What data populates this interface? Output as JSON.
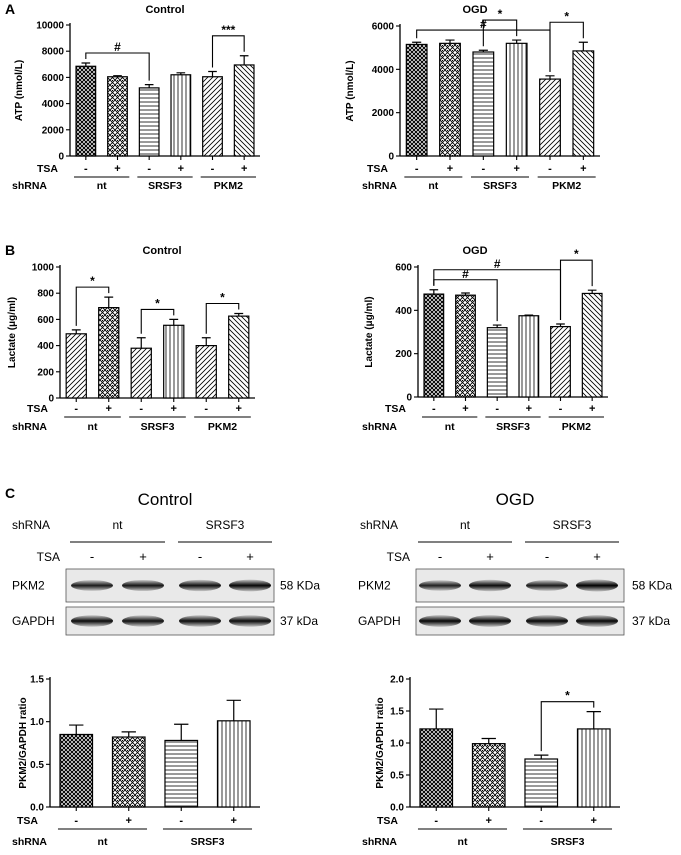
{
  "panel_letters": [
    "A",
    "B",
    "C"
  ],
  "chart_data": [
    {
      "id": "atp-control",
      "type": "bar",
      "title": "Control",
      "ylabel": "ATP (nmol/L)",
      "ylim": [
        0,
        10000
      ],
      "yticks": [
        0,
        2000,
        4000,
        6000,
        8000,
        10000
      ],
      "tsa": [
        "-",
        "+",
        "-",
        "+",
        "-",
        "+"
      ],
      "groups": [
        "nt",
        "SRSF3",
        "PKM2"
      ],
      "pattern_cycle": [
        "cross",
        "check",
        "hlines",
        "vlines",
        "diag",
        "diagb"
      ],
      "values": [
        6850,
        6050,
        5200,
        6200,
        6050,
        6950
      ],
      "errors": [
        250,
        80,
        250,
        150,
        400,
        700
      ],
      "significance": [
        {
          "from": 0,
          "to": 2,
          "label": "#"
        },
        {
          "from": 4,
          "to": 5,
          "label": "***"
        }
      ]
    },
    {
      "id": "atp-ogd",
      "type": "bar",
      "title": "OGD",
      "ylabel": "ATP (nmol/L)",
      "ylim": [
        0,
        6000
      ],
      "yticks": [
        0,
        2000,
        4000,
        6000
      ],
      "tsa": [
        "-",
        "+",
        "-",
        "+",
        "-",
        "+"
      ],
      "groups": [
        "nt",
        "SRSF3",
        "PKM2"
      ],
      "pattern_cycle": [
        "cross",
        "check",
        "hlines",
        "vlines",
        "diag",
        "diagb"
      ],
      "values": [
        5150,
        5200,
        4800,
        5200,
        3550,
        4850
      ],
      "errors": [
        100,
        150,
        80,
        150,
        150,
        400
      ],
      "significance": [
        {
          "from": 0,
          "to": 4,
          "label": "#"
        },
        {
          "from": 2,
          "to": 3,
          "label": "*"
        },
        {
          "from": 4,
          "to": 5,
          "label": "*"
        }
      ]
    },
    {
      "id": "lactate-control",
      "type": "bar",
      "title": "Control",
      "ylabel": "Lactate (μg/ml)",
      "ylim": [
        0,
        1000
      ],
      "yticks": [
        0,
        200,
        400,
        600,
        800,
        1000
      ],
      "tsa": [
        "-",
        "+",
        "-",
        "+",
        "-",
        "+"
      ],
      "groups": [
        "nt",
        "SRSF3",
        "PKM2"
      ],
      "pattern_cycle": [
        "diag",
        "check",
        "diag",
        "vlines",
        "diag",
        "diagb"
      ],
      "values": [
        490,
        690,
        380,
        555,
        400,
        625
      ],
      "errors": [
        30,
        80,
        80,
        45,
        60,
        20
      ],
      "significance": [
        {
          "from": 0,
          "to": 1,
          "label": "*"
        },
        {
          "from": 2,
          "to": 3,
          "label": "*"
        },
        {
          "from": 4,
          "to": 5,
          "label": "*"
        }
      ]
    },
    {
      "id": "lactate-ogd",
      "type": "bar",
      "title": "OGD",
      "ylabel": "Lactate (μg/ml)",
      "ylim": [
        0,
        600
      ],
      "yticks": [
        0,
        200,
        400,
        600
      ],
      "tsa": [
        "-",
        "+",
        "-",
        "+",
        "-",
        "+"
      ],
      "groups": [
        "nt",
        "SRSF3",
        "PKM2"
      ],
      "pattern_cycle": [
        "cross",
        "check",
        "hlines",
        "vlines",
        "diag",
        "diagb"
      ],
      "values": [
        475,
        470,
        320,
        375,
        325,
        478
      ],
      "errors": [
        20,
        10,
        12,
        3,
        12,
        15
      ],
      "significance": [
        {
          "from": 0,
          "to": 2,
          "label": "#"
        },
        {
          "from": 0,
          "to": 4,
          "label": "#"
        },
        {
          "from": 4,
          "to": 5,
          "label": "*"
        }
      ]
    },
    {
      "id": "pkm2-control",
      "type": "bar",
      "title": "",
      "ylabel": "PKM2/GAPDH ratio",
      "ylim": [
        0,
        1.5
      ],
      "yticks": [
        0.0,
        0.5,
        1.0,
        1.5
      ],
      "tick_format": "fixed1",
      "tsa": [
        "-",
        "+",
        "-",
        "+"
      ],
      "groups": [
        "nt",
        "SRSF3"
      ],
      "pattern_cycle": [
        "cross",
        "check",
        "hlines",
        "vlines"
      ],
      "values": [
        0.85,
        0.82,
        0.78,
        1.01
      ],
      "errors": [
        0.11,
        0.06,
        0.19,
        0.24
      ],
      "significance": []
    },
    {
      "id": "pkm2-ogd",
      "type": "bar",
      "title": "",
      "ylabel": "PKM2/GAPDH ratio",
      "ylim": [
        0,
        2.0
      ],
      "yticks": [
        0.0,
        0.5,
        1.0,
        1.5,
        2.0
      ],
      "tick_format": "fixed1",
      "tsa": [
        "-",
        "+",
        "-",
        "+"
      ],
      "groups": [
        "nt",
        "SRSF3"
      ],
      "pattern_cycle": [
        "cross",
        "check",
        "hlines",
        "vlines"
      ],
      "values": [
        1.22,
        0.99,
        0.75,
        1.22
      ],
      "errors": [
        0.31,
        0.08,
        0.06,
        0.27
      ],
      "significance": [
        {
          "from": 2,
          "to": 3,
          "label": "*"
        }
      ]
    }
  ],
  "labels": {
    "tsa": "TSA",
    "shrna": "shRNA"
  },
  "blots": [
    {
      "id": "blot-control",
      "title": "Control",
      "shrna_label": "shRNA",
      "groups": [
        "nt",
        "SRSF3"
      ],
      "tsa_label": "TSA",
      "tsa": [
        "-",
        "+",
        "-",
        "+"
      ],
      "rows": [
        {
          "protein": "PKM2",
          "size": "58 KDa",
          "intensity": [
            0.75,
            0.8,
            0.85,
            0.95
          ]
        },
        {
          "protein": "GAPDH",
          "size": "37 kDa",
          "intensity": [
            0.9,
            0.85,
            0.9,
            0.9
          ]
        }
      ]
    },
    {
      "id": "blot-ogd",
      "title": "OGD",
      "shrna_label": "shRNA",
      "groups": [
        "nt",
        "SRSF3"
      ],
      "tsa_label": "TSA",
      "tsa": [
        "-",
        "+",
        "-",
        "+"
      ],
      "rows": [
        {
          "protein": "PKM2",
          "size": "58 KDa",
          "intensity": [
            0.7,
            0.9,
            0.75,
            1.0
          ]
        },
        {
          "protein": "GAPDH",
          "size": "37 kDa",
          "intensity": [
            0.95,
            0.95,
            0.95,
            0.95
          ]
        }
      ]
    }
  ]
}
